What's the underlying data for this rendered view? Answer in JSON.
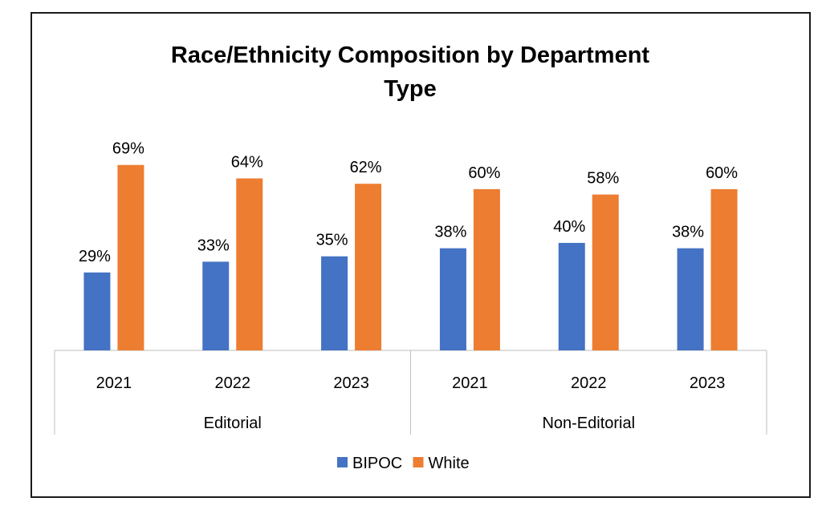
{
  "chart_data": {
    "type": "bar",
    "title": "Race/Ethnicity Composition by Department Type",
    "groups": [
      {
        "label": "Editorial",
        "categories": [
          "2021",
          "2022",
          "2023"
        ]
      },
      {
        "label": "Non-Editorial",
        "categories": [
          "2021",
          "2022",
          "2023"
        ]
      }
    ],
    "categories": [
      "2021",
      "2022",
      "2023",
      "2021",
      "2022",
      "2023"
    ],
    "series": [
      {
        "name": "BIPOC",
        "color": "#4472C4",
        "values": [
          29,
          33,
          35,
          38,
          40,
          38
        ]
      },
      {
        "name": "White",
        "color": "#ED7D31",
        "values": [
          69,
          64,
          62,
          60,
          58,
          60
        ]
      }
    ],
    "value_suffix": "%",
    "ylim": [
      0,
      100
    ],
    "grid": false,
    "legend_position": "bottom"
  }
}
